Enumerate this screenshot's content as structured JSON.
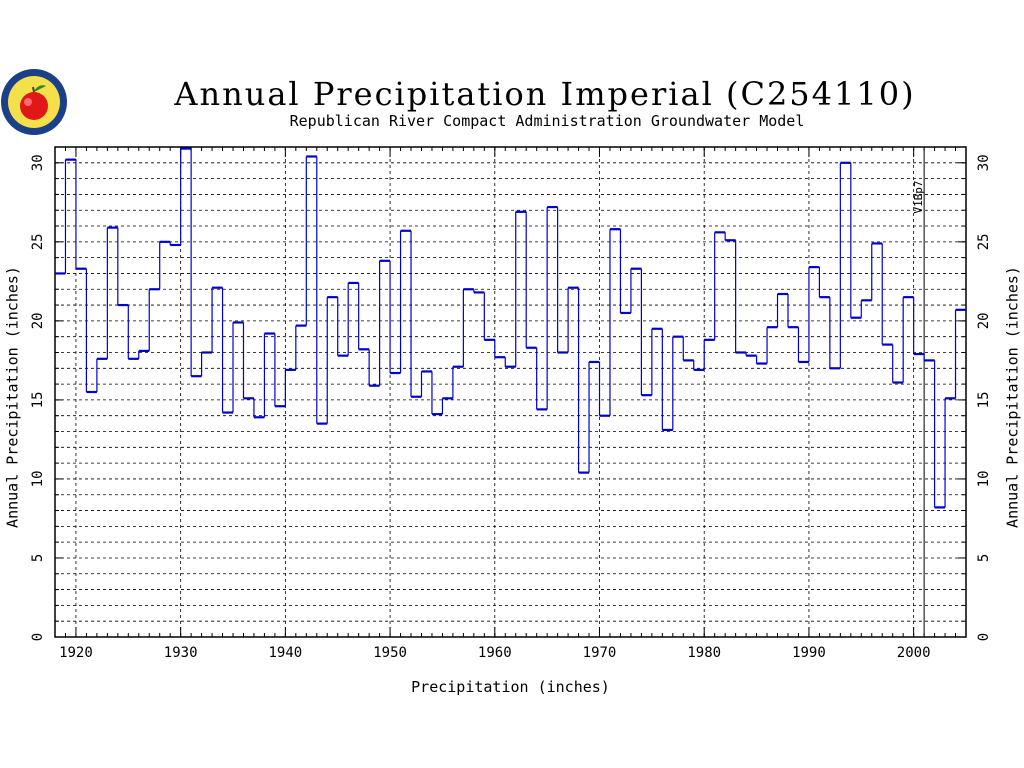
{
  "chart_data": {
    "type": "line",
    "step": true,
    "title": "Annual Precipitation Imperial (C254110)",
    "subtitle": "Republican River Compact Administration Groundwater Model",
    "xlabel": "Precipitation (inches)",
    "ylabel": "Annual Precipitation (inches)",
    "ylabel_right": "Annual Precipitation (inches)",
    "xlim": [
      1918,
      2005
    ],
    "ylim": [
      0,
      31
    ],
    "x_ticks": [
      "1920",
      "1930",
      "1940",
      "1950",
      "1960",
      "1970",
      "1980",
      "1990",
      "2000"
    ],
    "y_ticks": [
      "0",
      "5",
      "10",
      "15",
      "20",
      "25",
      "30"
    ],
    "grid": true,
    "line_color": "#0000cc",
    "vertical_marker": {
      "x": 2001,
      "label": "V1Bp7"
    },
    "series": [
      {
        "x": [
          1918,
          1919,
          1920,
          1921,
          1922,
          1923,
          1924,
          1925,
          1926,
          1927,
          1928,
          1929,
          1930,
          1931,
          1932,
          1933,
          1934,
          1935,
          1936,
          1937,
          1938,
          1939,
          1940,
          1941,
          1942,
          1943,
          1944,
          1945,
          1946,
          1947,
          1948,
          1949,
          1950,
          1951,
          1952,
          1953,
          1954,
          1955,
          1956,
          1957,
          1958,
          1959,
          1960,
          1961,
          1962,
          1963,
          1964,
          1965,
          1966,
          1967,
          1968,
          1969,
          1970,
          1971,
          1972,
          1973,
          1974,
          1975,
          1976,
          1977,
          1978,
          1979,
          1980,
          1981,
          1982,
          1983,
          1984,
          1985,
          1986,
          1987,
          1988,
          1989,
          1990,
          1991,
          1992,
          1993,
          1994,
          1995,
          1996,
          1997,
          1998,
          1999,
          2000,
          2001,
          2002,
          2003,
          2004
        ],
        "values": [
          23.0,
          30.2,
          23.3,
          15.5,
          17.6,
          25.9,
          21.0,
          17.6,
          18.1,
          22.0,
          25.0,
          24.8,
          30.9,
          16.5,
          18.0,
          22.1,
          14.2,
          19.9,
          15.1,
          13.9,
          19.2,
          14.6,
          16.9,
          19.7,
          30.4,
          13.5,
          21.5,
          17.8,
          22.4,
          18.2,
          15.9,
          23.8,
          16.7,
          25.7,
          15.2,
          16.8,
          14.1,
          15.1,
          17.1,
          22.0,
          21.8,
          18.8,
          17.7,
          17.1,
          26.9,
          18.3,
          14.4,
          27.2,
          18.0,
          22.1,
          10.4,
          17.4,
          14.0,
          25.8,
          20.5,
          23.3,
          15.3,
          19.5,
          13.1,
          19.0,
          17.5,
          16.9,
          18.8,
          25.6,
          25.1,
          18.0,
          17.8,
          17.3,
          19.6,
          21.7,
          19.6,
          17.4,
          23.4,
          21.5,
          17.0,
          30.0,
          20.2,
          21.3,
          24.9,
          18.5,
          16.1,
          21.5,
          17.9,
          17.5,
          8.2,
          15.1,
          20.7
        ]
      }
    ]
  }
}
